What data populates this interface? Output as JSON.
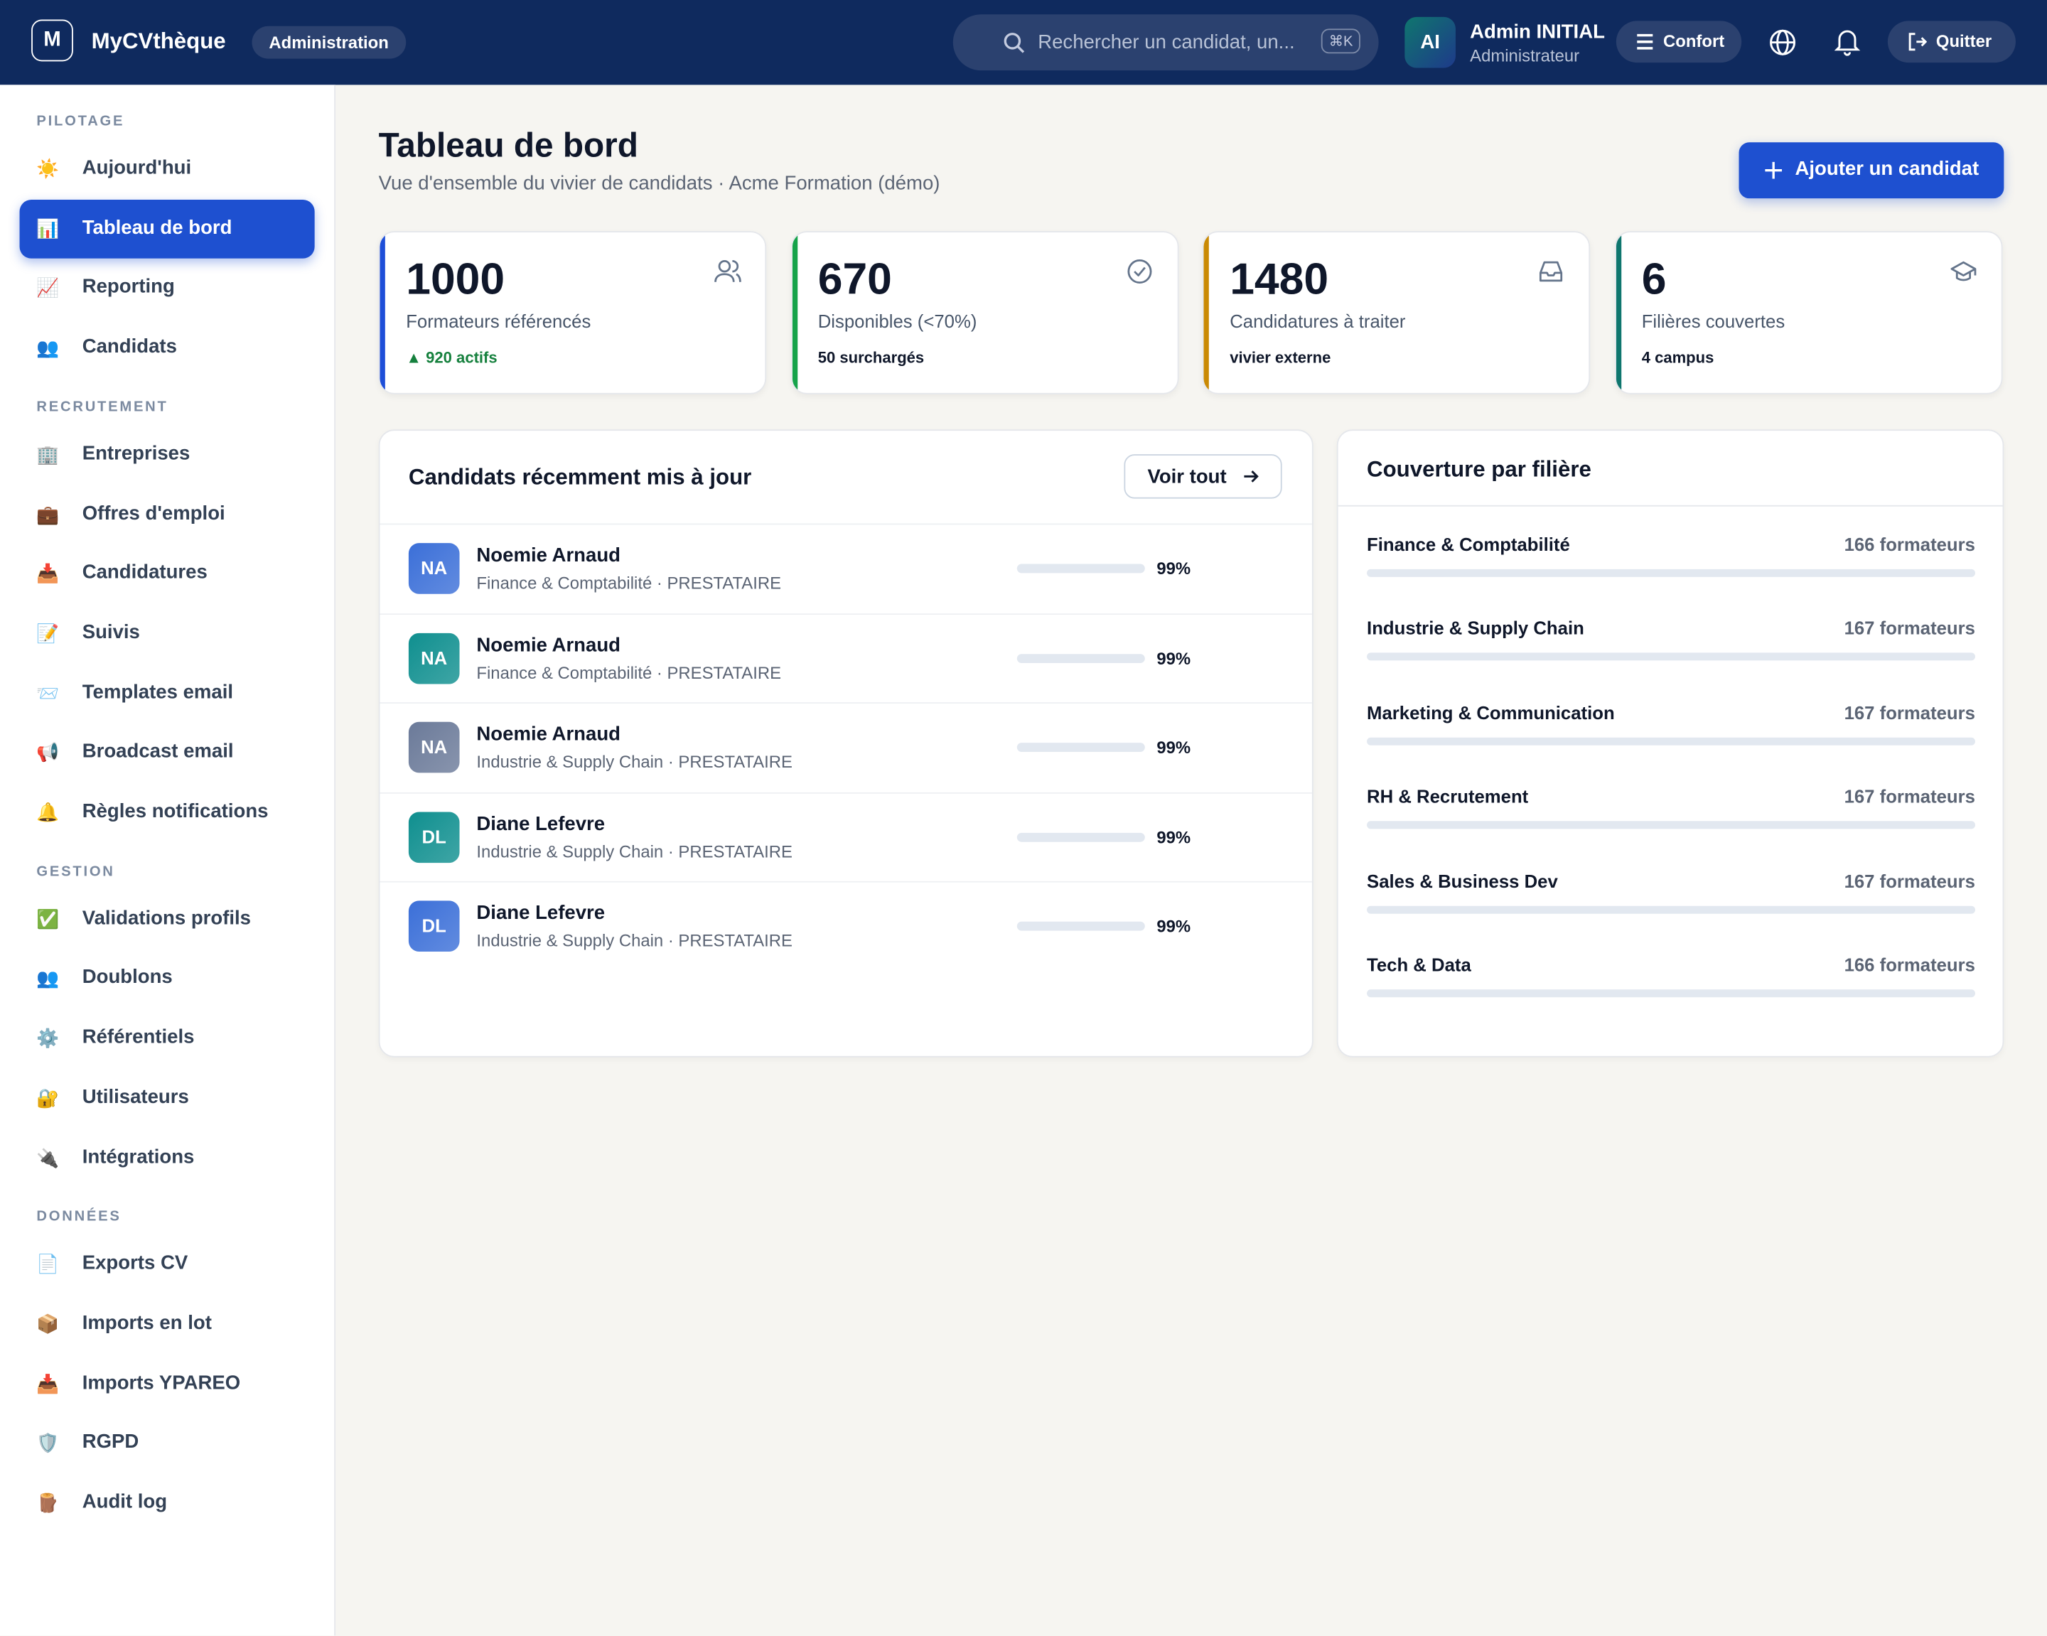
{
  "header": {
    "logo": "M",
    "brand": "MyCVthèque",
    "badge": "Administration",
    "search_placeholder": "Rechercher un candidat, un...",
    "shortcut": "⌘K",
    "user_initials": "AI",
    "user_name": "Admin INITIAL",
    "user_role": "Administrateur",
    "comfort": "Confort",
    "quit": "Quitter"
  },
  "sidebar": {
    "sections": [
      {
        "title": "PILOTAGE",
        "items": [
          {
            "icon": "☀️",
            "label": "Aujourd'hui"
          },
          {
            "icon": "📊",
            "label": "Tableau de bord",
            "active": true
          },
          {
            "icon": "📈",
            "label": "Reporting"
          },
          {
            "icon": "👥",
            "label": "Candidats"
          }
        ]
      },
      {
        "title": "RECRUTEMENT",
        "items": [
          {
            "icon": "🏢",
            "label": "Entreprises"
          },
          {
            "icon": "💼",
            "label": "Offres d'emploi"
          },
          {
            "icon": "📥",
            "label": "Candidatures"
          },
          {
            "icon": "📝",
            "label": "Suivis"
          },
          {
            "icon": "📨",
            "label": "Templates email"
          },
          {
            "icon": "📢",
            "label": "Broadcast email"
          },
          {
            "icon": "🔔",
            "label": "Règles notifications"
          }
        ]
      },
      {
        "title": "GESTION",
        "items": [
          {
            "icon": "✅",
            "label": "Validations profils"
          },
          {
            "icon": "👥",
            "label": "Doublons"
          },
          {
            "icon": "⚙️",
            "label": "Référentiels"
          },
          {
            "icon": "🔐",
            "label": "Utilisateurs"
          },
          {
            "icon": "🔌",
            "label": "Intégrations"
          }
        ]
      },
      {
        "title": "DONNÉES",
        "items": [
          {
            "icon": "📄",
            "label": "Exports CV"
          },
          {
            "icon": "📦",
            "label": "Imports en lot"
          },
          {
            "icon": "📥",
            "label": "Imports YPAREO"
          },
          {
            "icon": "🛡️",
            "label": "RGPD"
          },
          {
            "icon": "🪵",
            "label": "Audit log"
          }
        ]
      }
    ]
  },
  "main": {
    "title": "Tableau de bord",
    "subtitle": "Vue d'ensemble du vivier de candidats · Acme Formation (démo)",
    "add_button": "Ajouter un candidat"
  },
  "stats": [
    {
      "value": 1000,
      "label": "Formateurs référencés",
      "note": "▲ 920 actifs",
      "color": "#1d4ed8"
    },
    {
      "value": 670,
      "label": "Disponibles (<70%)",
      "note": "50 surchargés",
      "color": "#16a34a"
    },
    {
      "value": 1480,
      "label": "Candidatures à traiter",
      "note": "vivier externe",
      "color": "#ca8a04"
    },
    {
      "value": 6,
      "label": "Filières couvertes",
      "note": "4 campus",
      "color": "#0f766e"
    }
  ],
  "recent": {
    "title": "Candidats récemment mis à jour",
    "view_all": "Voir tout",
    "rows": [
      {
        "initials": "NA",
        "name": "Noemie Arnaud",
        "meta": "Finance & Comptabilité · PRESTATAIRE",
        "percent": "99%",
        "color": "#3b6fd8"
      },
      {
        "initials": "NA",
        "name": "Noemie Arnaud",
        "meta": "Finance & Comptabilité · PRESTATAIRE",
        "percent": "99%",
        "color": "#0f8f8f"
      },
      {
        "initials": "NA",
        "name": "Noemie Arnaud",
        "meta": "Industrie & Supply Chain · PRESTATAIRE",
        "percent": "99%",
        "color": "#6b7a99"
      },
      {
        "initials": "DL",
        "name": "Diane Lefevre",
        "meta": "Industrie & Supply Chain · PRESTATAIRE",
        "percent": "99%",
        "color": "#0f8f8f"
      },
      {
        "initials": "DL",
        "name": "Diane Lefevre",
        "meta": "Industrie & Supply Chain · PRESTATAIRE",
        "percent": "99%",
        "color": "#3b6fd8"
      }
    ]
  },
  "coverage": {
    "title": "Couverture par filière",
    "rows": [
      {
        "name": "Finance & Comptabilité",
        "count": "166 formateurs"
      },
      {
        "name": "Industrie & Supply Chain",
        "count": "167 formateurs"
      },
      {
        "name": "Marketing & Communication",
        "count": "167 formateurs"
      },
      {
        "name": "RH & Recrutement",
        "count": "167 formateurs"
      },
      {
        "name": "Sales & Business Dev",
        "count": "167 formateurs"
      },
      {
        "name": "Tech & Data",
        "count": "166 formateurs"
      }
    ]
  }
}
